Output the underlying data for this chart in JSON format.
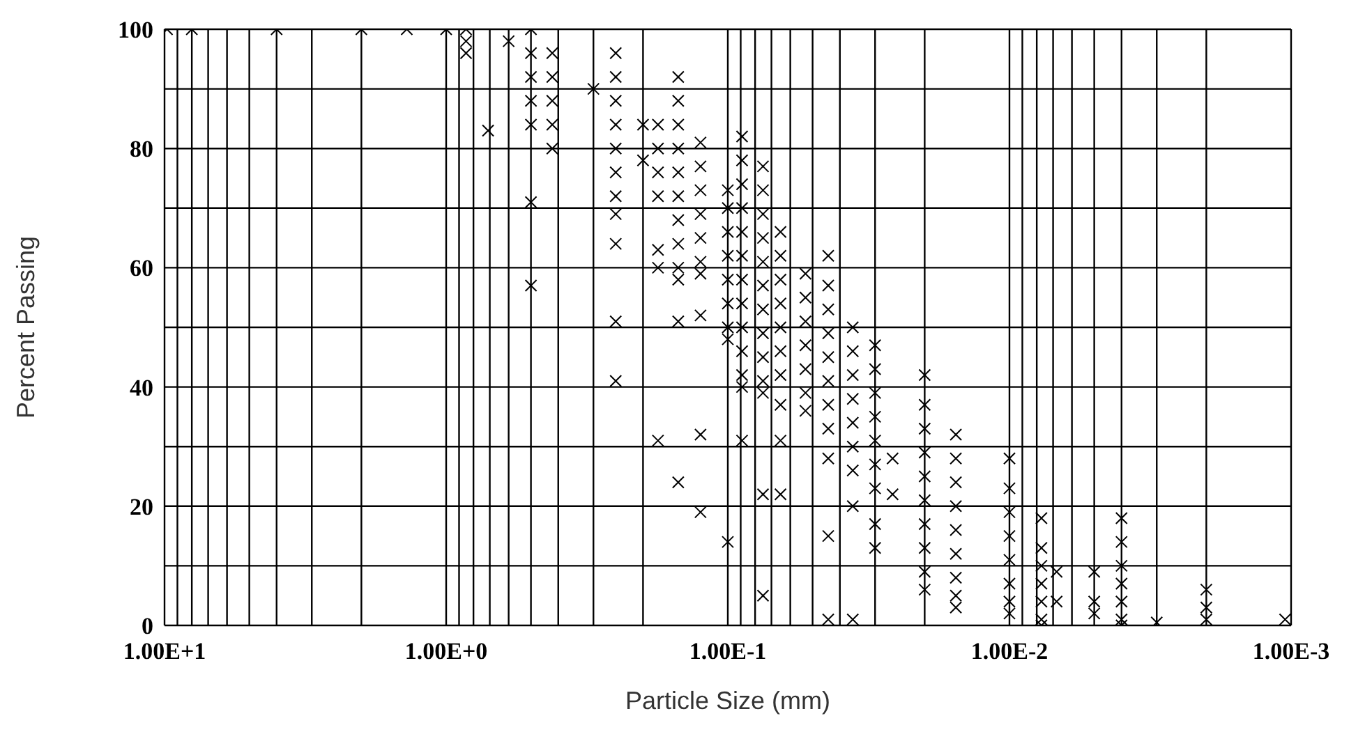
{
  "chart_data": {
    "type": "scatter",
    "xlabel": "Particle Size (mm)",
    "ylabel": "Percent Passing",
    "log": "x",
    "marker": "cross",
    "grid": true,
    "color": "#000000",
    "xlim": [
      10,
      0.001
    ],
    "xticks": [
      {
        "value": 10,
        "label": "1.00E+1"
      },
      {
        "value": 9,
        "label": null
      },
      {
        "value": 8,
        "label": null
      },
      {
        "value": 7,
        "label": null
      },
      {
        "value": 6,
        "label": null
      },
      {
        "value": 5,
        "label": null
      },
      {
        "value": 4,
        "label": null
      },
      {
        "value": 3,
        "label": null
      },
      {
        "value": 2,
        "label": null
      },
      {
        "value": 1,
        "label": "1.00E+0"
      },
      {
        "value": 0.9,
        "label": null
      },
      {
        "value": 0.8,
        "label": null
      },
      {
        "value": 0.7,
        "label": null
      },
      {
        "value": 0.6,
        "label": null
      },
      {
        "value": 0.5,
        "label": null
      },
      {
        "value": 0.4,
        "label": null
      },
      {
        "value": 0.3,
        "label": null
      },
      {
        "value": 0.2,
        "label": null
      },
      {
        "value": 0.1,
        "label": "1.00E-1"
      },
      {
        "value": 0.09,
        "label": null
      },
      {
        "value": 0.08,
        "label": null
      },
      {
        "value": 0.07,
        "label": null
      },
      {
        "value": 0.06,
        "label": null
      },
      {
        "value": 0.05,
        "label": null
      },
      {
        "value": 0.04,
        "label": null
      },
      {
        "value": 0.03,
        "label": null
      },
      {
        "value": 0.02,
        "label": null
      },
      {
        "value": 0.01,
        "label": "1.00E-2"
      },
      {
        "value": 0.009,
        "label": null
      },
      {
        "value": 0.008,
        "label": null
      },
      {
        "value": 0.007,
        "label": null
      },
      {
        "value": 0.006,
        "label": null
      },
      {
        "value": 0.005,
        "label": null
      },
      {
        "value": 0.004,
        "label": null
      },
      {
        "value": 0.003,
        "label": null
      },
      {
        "value": 0.002,
        "label": null
      },
      {
        "value": 0.001,
        "label": "1.00E-3"
      }
    ],
    "ylim": [
      0,
      100
    ],
    "yticks": [
      0,
      {
        "value": 10,
        "label": null
      },
      20,
      {
        "value": 30,
        "label": null
      },
      40,
      {
        "value": 50,
        "label": null
      },
      60,
      {
        "value": 70,
        "label": null
      },
      80,
      {
        "value": 90,
        "label": null
      },
      100
    ],
    "x": [
      9.8,
      8,
      4,
      2,
      1.38,
      1,
      0.85,
      0.85,
      0.85,
      0.71,
      0.6,
      0.5,
      0.5,
      0.5,
      0.5,
      0.5,
      0.5,
      0.5,
      0.42,
      0.42,
      0.42,
      0.42,
      0.42,
      0.3,
      0.25,
      0.25,
      0.25,
      0.25,
      0.25,
      0.25,
      0.25,
      0.25,
      0.25,
      0.25,
      0.25,
      0.2,
      0.2,
      0.177,
      0.177,
      0.177,
      0.177,
      0.177,
      0.177,
      0.177,
      0.15,
      0.15,
      0.15,
      0.15,
      0.15,
      0.15,
      0.15,
      0.15,
      0.15,
      0.15,
      0.15,
      0.15,
      0.125,
      0.125,
      0.125,
      0.125,
      0.125,
      0.125,
      0.125,
      0.125,
      0.125,
      0.125,
      0.1,
      0.1,
      0.1,
      0.1,
      0.1,
      0.1,
      0.1,
      0.1,
      0.1,
      0.089,
      0.089,
      0.089,
      0.089,
      0.089,
      0.089,
      0.089,
      0.089,
      0.089,
      0.089,
      0.089,
      0.089,
      0.089,
      0.075,
      0.075,
      0.075,
      0.075,
      0.075,
      0.075,
      0.075,
      0.075,
      0.075,
      0.075,
      0.075,
      0.075,
      0.075,
      0.065,
      0.065,
      0.065,
      0.065,
      0.065,
      0.065,
      0.065,
      0.065,
      0.065,
      0.065,
      0.053,
      0.053,
      0.053,
      0.053,
      0.053,
      0.053,
      0.053,
      0.044,
      0.044,
      0.044,
      0.044,
      0.044,
      0.044,
      0.044,
      0.044,
      0.044,
      0.044,
      0.044,
      0.036,
      0.036,
      0.036,
      0.036,
      0.036,
      0.036,
      0.036,
      0.036,
      0.036,
      0.03,
      0.03,
      0.03,
      0.03,
      0.03,
      0.03,
      0.03,
      0.03,
      0.03,
      0.026,
      0.026,
      0.02,
      0.02,
      0.02,
      0.02,
      0.02,
      0.02,
      0.02,
      0.02,
      0.02,
      0.02,
      0.0155,
      0.0155,
      0.0155,
      0.0155,
      0.0155,
      0.0155,
      0.0155,
      0.0155,
      0.0155,
      0.01,
      0.01,
      0.01,
      0.01,
      0.01,
      0.01,
      0.01,
      0.01,
      0.0077,
      0.0077,
      0.0077,
      0.0077,
      0.0077,
      0.0077,
      0.0077,
      0.0068,
      0.0068,
      0.005,
      0.005,
      0.005,
      0.004,
      0.004,
      0.004,
      0.004,
      0.004,
      0.004,
      0.004,
      0.003,
      0.002,
      0.002,
      0.002,
      0.00105
    ],
    "values": [
      100,
      100,
      100,
      100,
      100,
      100,
      100,
      98,
      96,
      83,
      98,
      100,
      96,
      92,
      88,
      84,
      71,
      57,
      96,
      92,
      88,
      84,
      80,
      90,
      96,
      92,
      88,
      84,
      80,
      76,
      72,
      69,
      64,
      51,
      41,
      84,
      78,
      84,
      80,
      76,
      72,
      63,
      60,
      31,
      92,
      88,
      84,
      80,
      76,
      72,
      68,
      64,
      60,
      58,
      51,
      24,
      81,
      77,
      73,
      69,
      65,
      61,
      59,
      52,
      32,
      19,
      73,
      70,
      66,
      62,
      58,
      54,
      50,
      48,
      14,
      82,
      78,
      74,
      70,
      66,
      62,
      58,
      54,
      50,
      46,
      42,
      40,
      31,
      77,
      73,
      69,
      65,
      61,
      57,
      53,
      49,
      45,
      41,
      39,
      22,
      5,
      66,
      62,
      58,
      54,
      50,
      46,
      42,
      37,
      31,
      22,
      59,
      55,
      51,
      47,
      43,
      39,
      36,
      62,
      57,
      53,
      49,
      45,
      41,
      37,
      33,
      28,
      15,
      1,
      50,
      46,
      42,
      38,
      34,
      30,
      26,
      20,
      1,
      47,
      43,
      39,
      35,
      31,
      27,
      23,
      17,
      13,
      28,
      22,
      42,
      37,
      33,
      29,
      25,
      21,
      17,
      13,
      9,
      6,
      32,
      28,
      24,
      20,
      16,
      12,
      8,
      5,
      3,
      28,
      23,
      19,
      15,
      11,
      7,
      4,
      2,
      18,
      13,
      10,
      7,
      4,
      1,
      0,
      9,
      4,
      9,
      4,
      2,
      18,
      14,
      10,
      7,
      4,
      1,
      0,
      0.5,
      6,
      3,
      1,
      1
    ]
  }
}
